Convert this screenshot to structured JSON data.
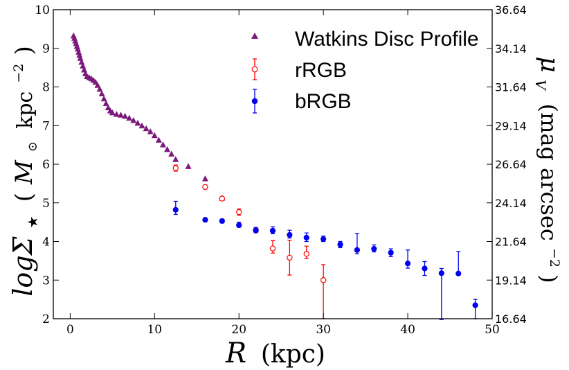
{
  "chart_data": {
    "type": "scatter",
    "xlabel_var": "R",
    "xlabel_unit": "(kpc)",
    "ylabel_left_main": "logΣ",
    "ylabel_left_sub": "★",
    "ylabel_left_unit_open": "(",
    "ylabel_left_unit_m": "M",
    "ylabel_left_unit_sun": "⊙",
    "ylabel_left_unit_kpc": "kpc",
    "ylabel_left_unit_exp": "−2",
    "ylabel_left_unit_close": ")",
    "ylabel_right_var": "μ",
    "ylabel_right_sub": "V",
    "ylabel_right_unit_open": "(mag arcsec",
    "ylabel_right_unit_exp": "−2",
    "ylabel_right_unit_close": ")",
    "xlim": [
      -2,
      50
    ],
    "ylim": [
      2,
      10
    ],
    "xticks": [
      "0",
      "10",
      "20",
      "30",
      "40",
      "50"
    ],
    "yticks": [
      "2",
      "3",
      "4",
      "5",
      "6",
      "7",
      "8",
      "9",
      "10"
    ],
    "yticks_right": [
      "16.64",
      "19.14",
      "21.64",
      "24.14",
      "26.64",
      "29.14",
      "31.64",
      "34.14",
      "36.64"
    ],
    "legend_position": "top-right",
    "series": [
      {
        "name": "Watkins Disc Profile",
        "marker": "triangle",
        "color": "#7b1a7b",
        "points": [
          [
            0.4,
            9.32
          ],
          [
            0.5,
            9.26
          ],
          [
            0.6,
            9.19
          ],
          [
            0.7,
            9.12
          ],
          [
            0.8,
            9.05
          ],
          [
            0.9,
            8.98
          ],
          [
            1.0,
            8.9
          ],
          [
            1.1,
            8.82
          ],
          [
            1.2,
            8.74
          ],
          [
            1.35,
            8.64
          ],
          [
            1.5,
            8.54
          ],
          [
            1.65,
            8.44
          ],
          [
            1.8,
            8.34
          ],
          [
            2.0,
            8.27
          ],
          [
            2.25,
            8.24
          ],
          [
            2.5,
            8.21
          ],
          [
            2.75,
            8.17
          ],
          [
            3.0,
            8.12
          ],
          [
            3.25,
            8.04
          ],
          [
            3.5,
            7.94
          ],
          [
            3.75,
            7.82
          ],
          [
            4.0,
            7.69
          ],
          [
            4.25,
            7.57
          ],
          [
            4.5,
            7.46
          ],
          [
            4.75,
            7.38
          ],
          [
            5.0,
            7.33
          ],
          [
            5.5,
            7.29
          ],
          [
            6.0,
            7.27
          ],
          [
            6.5,
            7.24
          ],
          [
            7.0,
            7.19
          ],
          [
            7.5,
            7.13
          ],
          [
            8.0,
            7.06
          ],
          [
            8.5,
            6.99
          ],
          [
            9.0,
            6.92
          ],
          [
            9.5,
            6.84
          ],
          [
            10.0,
            6.74
          ],
          [
            10.5,
            6.62
          ],
          [
            11.0,
            6.5
          ],
          [
            11.5,
            6.38
          ],
          [
            12.0,
            6.26
          ],
          [
            12.5,
            6.12
          ],
          [
            14.0,
            5.94
          ],
          [
            16.0,
            5.62
          ],
          [
            18.0,
            5.12
          ]
        ]
      },
      {
        "name": "rRGB",
        "marker": "open-circle",
        "color": "#ff0000",
        "points": [
          [
            12.5,
            5.9,
            0.08,
            0.08
          ],
          [
            16.0,
            5.41,
            0.05,
            0.05
          ],
          [
            18.0,
            5.11,
            0.04,
            0.04
          ],
          [
            20.0,
            4.76,
            0.08,
            0.08
          ],
          [
            22.0,
            4.3,
            0.05,
            0.05
          ],
          [
            24.0,
            3.82,
            0.12,
            0.2
          ],
          [
            26.0,
            3.58,
            0.45,
            0.45
          ],
          [
            28.0,
            3.68,
            0.12,
            0.2
          ],
          [
            30.0,
            3.0,
            1.0,
            0.4
          ]
        ]
      },
      {
        "name": "bRGB",
        "marker": "filled-circle",
        "color": "#0000ee",
        "points": [
          [
            12.5,
            4.82,
            0.12,
            0.22
          ],
          [
            16.0,
            4.56,
            0.05,
            0.05
          ],
          [
            18.0,
            4.53,
            0.05,
            0.05
          ],
          [
            20.0,
            4.42,
            0.05,
            0.08
          ],
          [
            22.0,
            4.28,
            0.05,
            0.08
          ],
          [
            24.0,
            4.28,
            0.08,
            0.1
          ],
          [
            26.0,
            4.17,
            0.08,
            0.12
          ],
          [
            28.0,
            4.1,
            0.1,
            0.12
          ],
          [
            30.0,
            4.06,
            0.06,
            0.08
          ],
          [
            32.0,
            3.92,
            0.08,
            0.08
          ],
          [
            34.0,
            3.78,
            0.1,
            0.42
          ],
          [
            36.0,
            3.81,
            0.08,
            0.1
          ],
          [
            38.0,
            3.71,
            0.1,
            0.1
          ],
          [
            40.0,
            3.43,
            0.12,
            0.35
          ],
          [
            42.0,
            3.3,
            0.18,
            0.18
          ],
          [
            44.0,
            3.18,
            1.2,
            0.12
          ],
          [
            46.0,
            3.17,
            0.0,
            0.57
          ],
          [
            48.0,
            2.35,
            0.35,
            0.15
          ]
        ]
      }
    ]
  }
}
